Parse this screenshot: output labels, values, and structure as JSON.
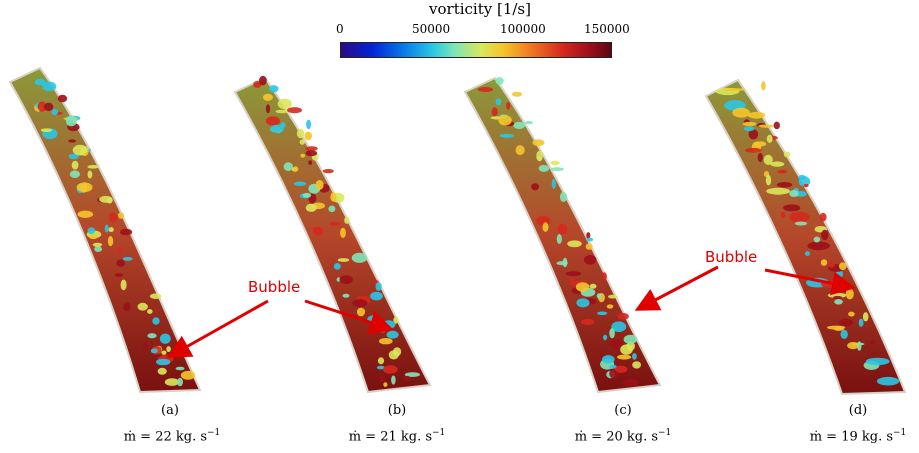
{
  "colorbar": {
    "title": "vorticity [1/s]",
    "ticks": [
      "0",
      "50000",
      "100000",
      "150000"
    ],
    "colors": [
      "#2a0a88",
      "#0026d6",
      "#0a7fe8",
      "#29c7e4",
      "#7fe6b8",
      "#d9e85a",
      "#f5c52a",
      "#f07a22",
      "#d6281e",
      "#9c0f1a",
      "#5e0612"
    ]
  },
  "annotation": {
    "bubble_label": "Bubble"
  },
  "panels": [
    {
      "letter": "(a)",
      "equation": "ṁ = 22 kg. s",
      "exponent": "−1"
    },
    {
      "letter": "(b)",
      "equation": "ṁ = 21 kg. s",
      "exponent": "−1"
    },
    {
      "letter": "(c)",
      "equation": "ṁ = 20 kg. s",
      "exponent": "−1"
    },
    {
      "letter": "(d)",
      "equation": "ṁ = 19 kg. s",
      "exponent": "−1"
    }
  ]
}
